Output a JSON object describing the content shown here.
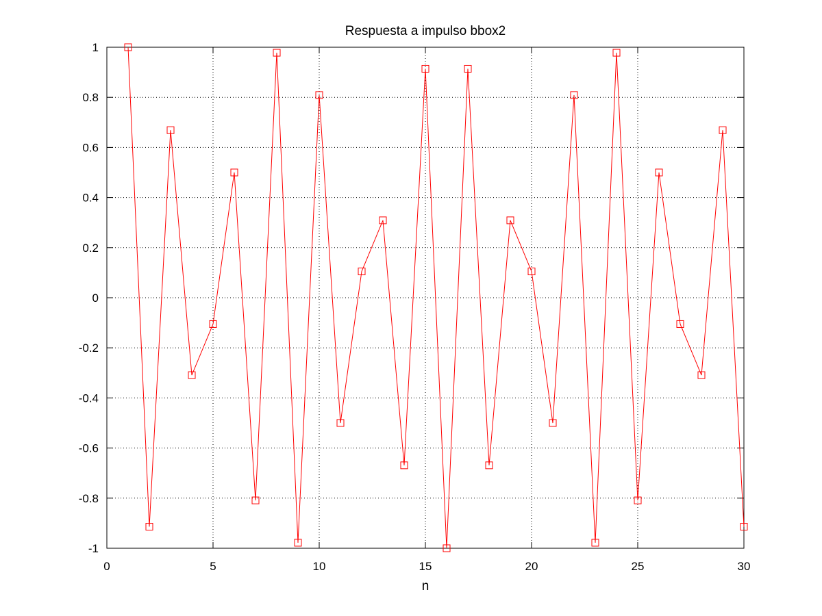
{
  "chart_data": {
    "type": "line",
    "title": "Respuesta a impulso bbox2",
    "xlabel": "n",
    "ylabel": "",
    "xlim": [
      0,
      30
    ],
    "ylim": [
      -1,
      1
    ],
    "xticks": [
      0,
      5,
      10,
      15,
      20,
      25,
      30
    ],
    "yticks": [
      -1,
      -0.8,
      -0.6,
      -0.4,
      -0.2,
      0,
      0.2,
      0.4,
      0.6,
      0.8,
      1
    ],
    "grid": true,
    "grid_style": "dotted",
    "marker": "square",
    "color": "#ff0000",
    "series": [
      {
        "x": [
          1,
          2,
          3,
          4,
          5,
          6,
          7,
          8,
          9,
          10,
          11,
          12,
          13,
          14,
          15,
          16,
          17,
          18,
          19,
          20,
          21,
          22,
          23,
          24,
          25,
          26,
          27,
          28,
          29,
          30
        ],
        "values": [
          1.0,
          -0.914,
          0.669,
          -0.309,
          -0.105,
          0.5,
          -0.809,
          0.978,
          -0.978,
          0.809,
          -0.5,
          0.105,
          0.309,
          -0.669,
          0.914,
          -1.0,
          0.914,
          -0.669,
          0.309,
          0.105,
          -0.5,
          0.809,
          -0.978,
          0.978,
          -0.809,
          0.5,
          -0.105,
          -0.309,
          0.669,
          -0.914
        ]
      }
    ]
  }
}
